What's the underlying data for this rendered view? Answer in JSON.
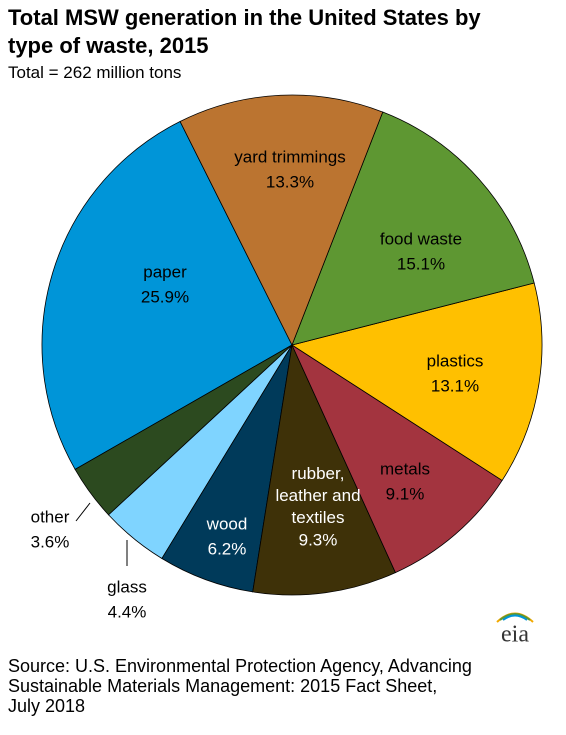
{
  "chart_data": {
    "type": "pie",
    "title": "Total MSW generation in the United States by\ntype of waste, 2015",
    "subtitle": "Total = 262 million tons",
    "categories": [
      "yard trimmings",
      "food waste",
      "plastics",
      "metals",
      "rubber, leather and textiles",
      "wood",
      "glass",
      "other",
      "paper"
    ],
    "values": [
      13.3,
      15.1,
      13.1,
      9.1,
      9.3,
      6.2,
      4.4,
      3.6,
      25.9
    ],
    "value_labels": [
      "13.3%",
      "15.1%",
      "13.1%",
      "9.1%",
      "9.3%",
      "6.2%",
      "4.4%",
      "3.6%",
      "25.9%"
    ],
    "colors": [
      "#bb7430",
      "#5e9732",
      "#ffc000",
      "#a3343f",
      "#3e3108",
      "#003a5a",
      "#7fd4ff",
      "#2c4a1f",
      "#0095d8"
    ],
    "source": "Source: U.S. Environmental Protection Agency, Advancing\nSustainable Materials Management: 2015 Fact Sheet,\nJuly 2018",
    "logo": "eia"
  }
}
